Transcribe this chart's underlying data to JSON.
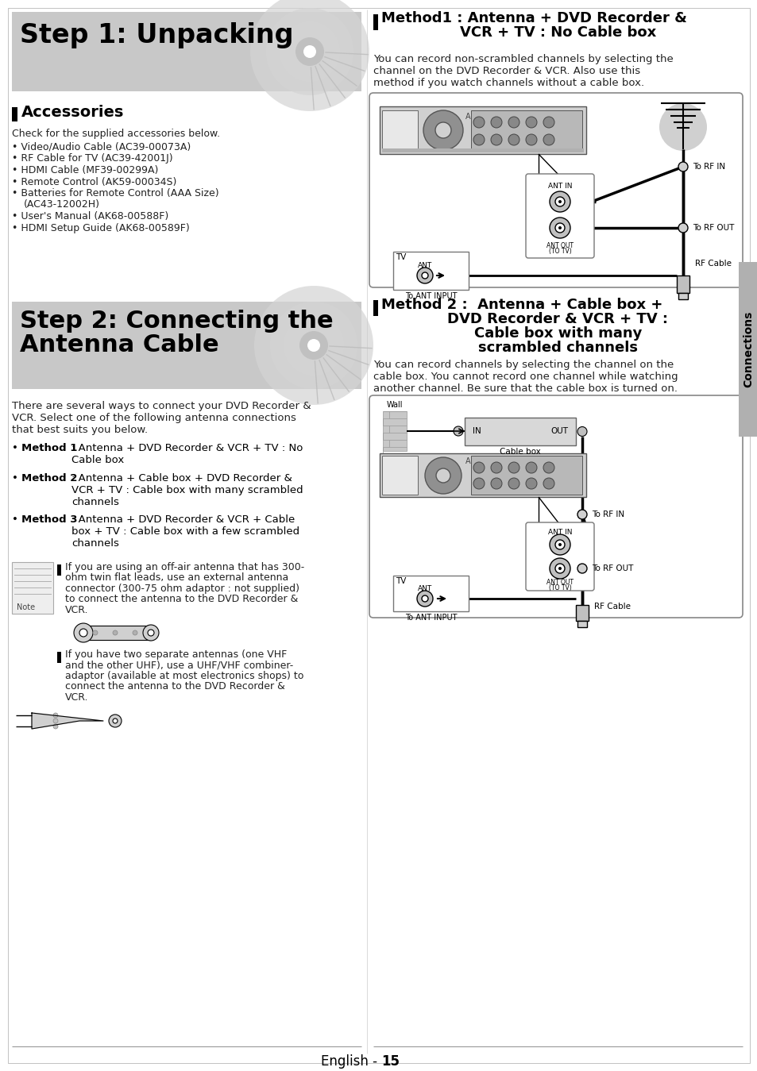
{
  "bg_color": "#ffffff",
  "step1_title": "Step 1: Unpacking",
  "step2_title_line1": "Step 2: Connecting the",
  "step2_title_line2": "Antenna Cable",
  "accessories_header": "Accessories",
  "accessories_intro": "Check for the supplied accessories below.",
  "accessories_items": [
    "Video/Audio Cable (AC39-00073A)",
    "RF Cable for TV (AC39-42001J)",
    "HDMI Cable (MF39-00299A)",
    "Remote Control (AK59-00034S)",
    "Batteries for Remote Control (AAA Size)",
    "  (AC43-12002H)",
    "User's Manual (AK68-00588F)",
    "HDMI Setup Guide (AK68-00589F)"
  ],
  "step2_intro_lines": [
    "There are several ways to connect your DVD Recorder &",
    "VCR. Select one of the following antenna connections",
    "that best suits you below."
  ],
  "method1_bullet_bold": "Method 1",
  "method1_bullet_text1": ": Antenna + DVD Recorder & VCR + TV : No",
  "method1_bullet_text2": "Cable box",
  "method2_bullet_bold": "Method 2",
  "method2_bullet_text1": ": Antenna + Cable box + DVD Recorder &",
  "method2_bullet_text2": "VCR + TV : Cable box with many scrambled",
  "method2_bullet_text3": "channels",
  "method3_bullet_bold": "Method 3",
  "method3_bullet_text1": ": Antenna + DVD Recorder & VCR + Cable",
  "method3_bullet_text2": "box + TV : Cable box with a few scrambled",
  "method3_bullet_text3": "channels",
  "note_line1": "If you are using an off-air antenna that has 300-",
  "note_line2": "ohm twin flat leads, use an external antenna",
  "note_line3": "connector (300-75 ohm adaptor : not supplied)",
  "note_line4": "to connect the antenna to the DVD Recorder &",
  "note_line5": "VCR.",
  "note2_line1": "If you have two separate antennas (one VHF",
  "note2_line2": "and the other UHF), use a UHF/VHF combiner-",
  "note2_line3": "adaptor (available at most electronics shops) to",
  "note2_line4": "connect the antenna to the DVD Recorder &",
  "note2_line5": "VCR.",
  "method1_header_line1": "Method1 : Antenna + DVD Recorder &",
  "method1_header_line2": "VCR + TV : No Cable box",
  "method1_desc_lines": [
    "You can record non-scrambled channels by selecting the",
    "channel on the DVD Recorder & VCR. Also use this",
    "method if you watch channels without a cable box."
  ],
  "method2_header_line1": "Method 2 :  Antenna + Cable box +",
  "method2_header_line2": "DVD Recorder & VCR + TV :",
  "method2_header_line3": "Cable box with many",
  "method2_header_line4": "scrambled channels",
  "method2_desc_lines": [
    "You can record channels by selecting the channel on the",
    "cable box. You cannot record one channel while watching",
    "another channel. Be sure that the cable box is turned on."
  ],
  "connections_label": "Connections",
  "footer_text": "English - ",
  "footer_bold": "15",
  "gray_banner": "#c8c8c8",
  "tab_color": "#b0b0b0",
  "border_color": "#999999",
  "device_gray": "#c0c0c0",
  "device_dark": "#888888"
}
